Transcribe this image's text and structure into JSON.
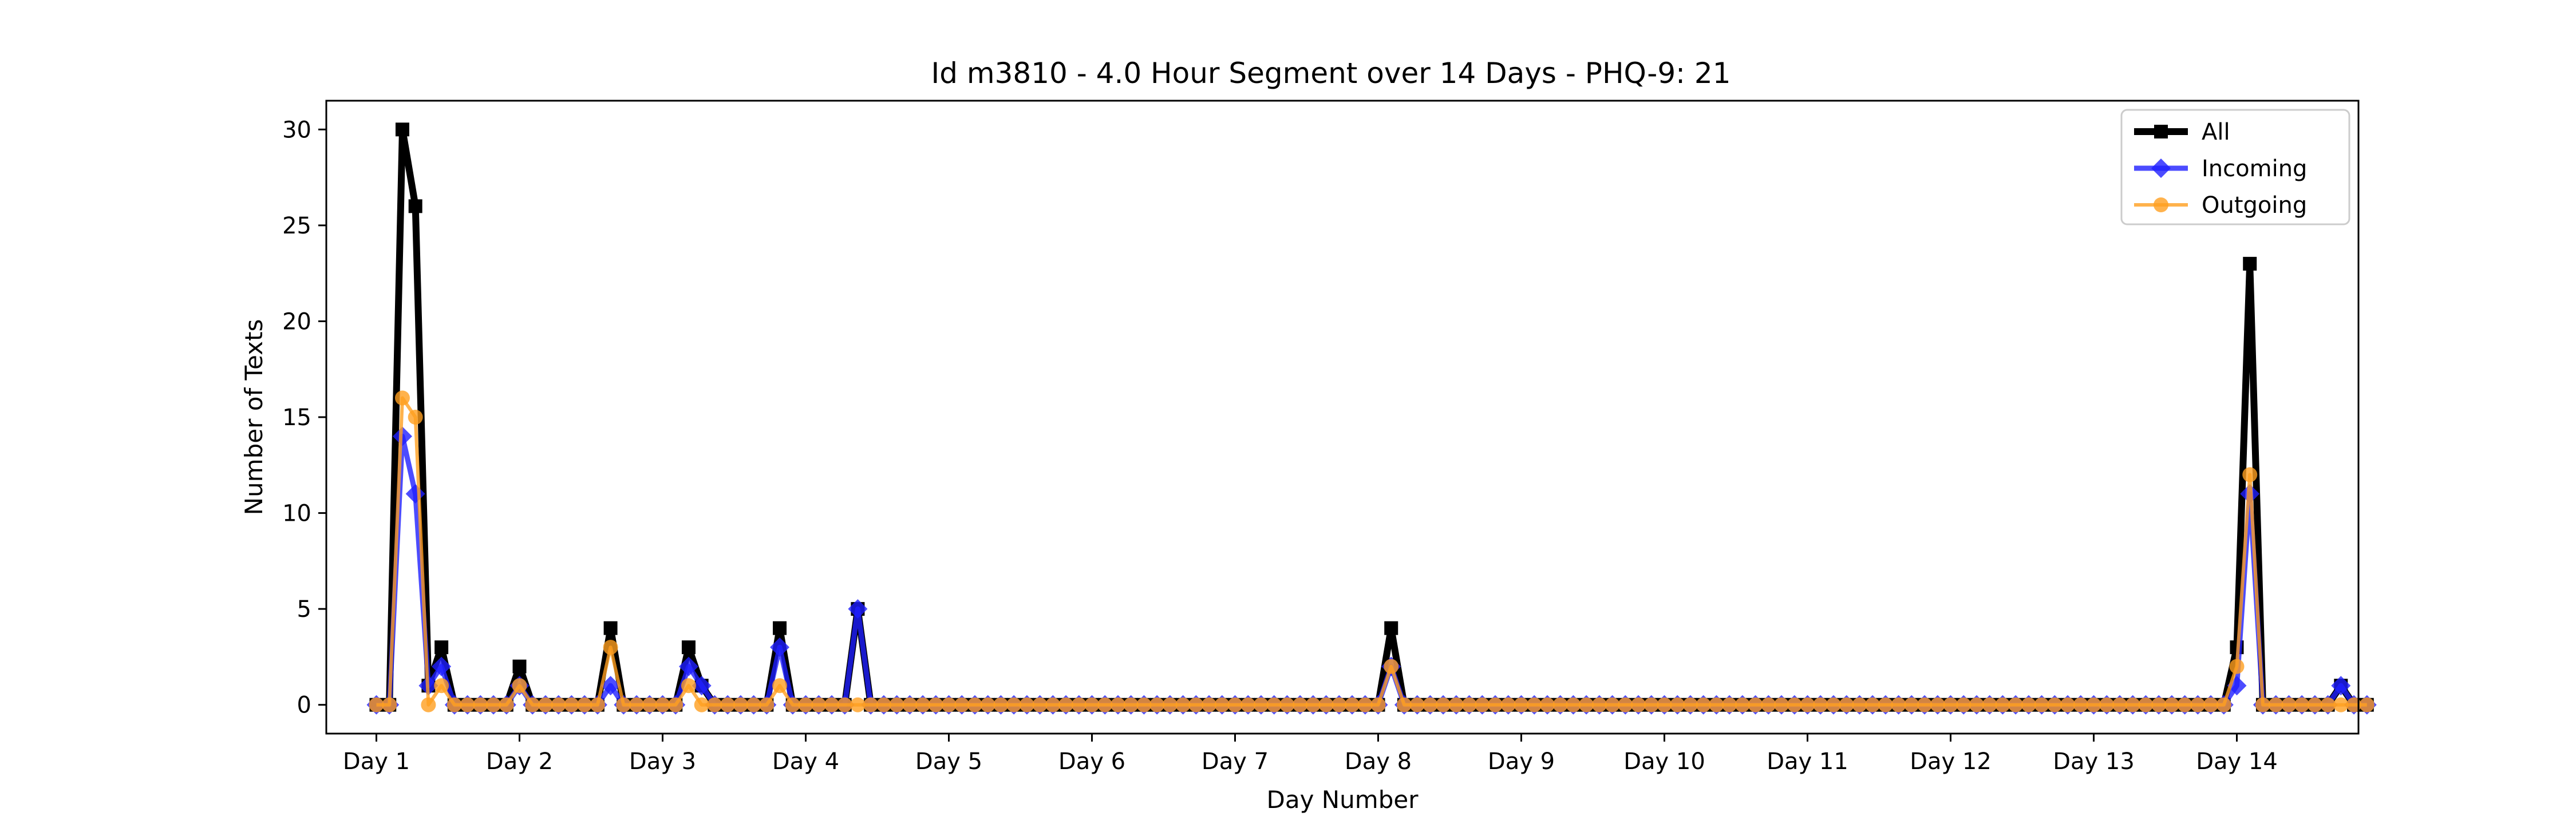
{
  "chart_data": {
    "type": "line",
    "title": "Id m3810 - 4.0 Hour Segment over 14 Days - PHQ-9: 21",
    "xlabel": "Day Number",
    "ylabel": "Number of Texts",
    "xlim": [
      -0.35,
      13.85
    ],
    "ylim": [
      -1.5,
      31.5
    ],
    "xticks": [
      0,
      1,
      2,
      3,
      4,
      5,
      6,
      7,
      8,
      9,
      10,
      11,
      12,
      13
    ],
    "xtick_labels": [
      "Day 1",
      "Day 2",
      "Day 3",
      "Day 4",
      "Day 5",
      "Day 6",
      "Day 7",
      "Day 8",
      "Day 9",
      "Day 10",
      "Day 11",
      "Day 12",
      "Day 13",
      "Day 14"
    ],
    "yticks": [
      0,
      5,
      10,
      15,
      20,
      25,
      30
    ],
    "ytick_labels": [
      "0",
      "5",
      "10",
      "15",
      "20",
      "25",
      "30"
    ],
    "legend_position": "top-right",
    "grid": false,
    "series": [
      {
        "name": "All",
        "color": "#000000",
        "marker": "square",
        "values": [
          0,
          0,
          30,
          26,
          1,
          3,
          0,
          0,
          0,
          0,
          0,
          2,
          0,
          0,
          0,
          0,
          0,
          0,
          4,
          0,
          0,
          0,
          0,
          0,
          3,
          1,
          0,
          0,
          0,
          0,
          0,
          4,
          0,
          0,
          0,
          0,
          0,
          5,
          0,
          0,
          0,
          0,
          0,
          0,
          0,
          0,
          0,
          0,
          0,
          0,
          0,
          0,
          0,
          0,
          0,
          0,
          0,
          0,
          0,
          0,
          0,
          0,
          0,
          0,
          0,
          0,
          0,
          0,
          0,
          0,
          0,
          0,
          0,
          0,
          0,
          0,
          0,
          0,
          4,
          0,
          0,
          0,
          0,
          0,
          0,
          0,
          0,
          0,
          0,
          0,
          0,
          0,
          0,
          0,
          0,
          0,
          0,
          0,
          0,
          0,
          0,
          0,
          0,
          0,
          0,
          0,
          0,
          0,
          0,
          0,
          0,
          0,
          0,
          0,
          0,
          0,
          0,
          0,
          0,
          0,
          0,
          0,
          0,
          0,
          0,
          0,
          0,
          0,
          0,
          0,
          0,
          0,
          0,
          0,
          0,
          0,
          0,
          0,
          0,
          0,
          0,
          0,
          0,
          3,
          23,
          0,
          0,
          0,
          0,
          0,
          0,
          1,
          0,
          0
        ]
      },
      {
        "name": "Incoming",
        "color": "#1f1fff",
        "marker": "diamond",
        "values": [
          0,
          0,
          14,
          11,
          1,
          2,
          0,
          0,
          0,
          0,
          0,
          1,
          0,
          0,
          0,
          0,
          0,
          0,
          1,
          0,
          0,
          0,
          0,
          0,
          2,
          1,
          0,
          0,
          0,
          0,
          0,
          3,
          0,
          0,
          0,
          0,
          0,
          5,
          0,
          0,
          0,
          0,
          0,
          0,
          0,
          0,
          0,
          0,
          0,
          0,
          0,
          0,
          0,
          0,
          0,
          0,
          0,
          0,
          0,
          0,
          0,
          0,
          0,
          0,
          0,
          0,
          0,
          0,
          0,
          0,
          0,
          0,
          0,
          0,
          0,
          0,
          0,
          0,
          2,
          0,
          0,
          0,
          0,
          0,
          0,
          0,
          0,
          0,
          0,
          0,
          0,
          0,
          0,
          0,
          0,
          0,
          0,
          0,
          0,
          0,
          0,
          0,
          0,
          0,
          0,
          0,
          0,
          0,
          0,
          0,
          0,
          0,
          0,
          0,
          0,
          0,
          0,
          0,
          0,
          0,
          0,
          0,
          0,
          0,
          0,
          0,
          0,
          0,
          0,
          0,
          0,
          0,
          0,
          0,
          0,
          0,
          0,
          0,
          0,
          0,
          0,
          0,
          0,
          1,
          11,
          0,
          0,
          0,
          0,
          0,
          0,
          1,
          0,
          0
        ]
      },
      {
        "name": "Outgoing",
        "color": "#ff9f1f",
        "marker": "circle",
        "values": [
          0,
          0,
          16,
          15,
          0,
          1,
          0,
          0,
          0,
          0,
          0,
          1,
          0,
          0,
          0,
          0,
          0,
          0,
          3,
          0,
          0,
          0,
          0,
          0,
          1,
          0,
          0,
          0,
          0,
          0,
          0,
          1,
          0,
          0,
          0,
          0,
          0,
          0,
          0,
          0,
          0,
          0,
          0,
          0,
          0,
          0,
          0,
          0,
          0,
          0,
          0,
          0,
          0,
          0,
          0,
          0,
          0,
          0,
          0,
          0,
          0,
          0,
          0,
          0,
          0,
          0,
          0,
          0,
          0,
          0,
          0,
          0,
          0,
          0,
          0,
          0,
          0,
          0,
          2,
          0,
          0,
          0,
          0,
          0,
          0,
          0,
          0,
          0,
          0,
          0,
          0,
          0,
          0,
          0,
          0,
          0,
          0,
          0,
          0,
          0,
          0,
          0,
          0,
          0,
          0,
          0,
          0,
          0,
          0,
          0,
          0,
          0,
          0,
          0,
          0,
          0,
          0,
          0,
          0,
          0,
          0,
          0,
          0,
          0,
          0,
          0,
          0,
          0,
          0,
          0,
          0,
          0,
          0,
          0,
          0,
          0,
          0,
          0,
          0,
          0,
          0,
          0,
          0,
          2,
          12,
          0,
          0,
          0,
          0,
          0,
          0,
          0,
          0,
          0
        ]
      }
    ]
  }
}
